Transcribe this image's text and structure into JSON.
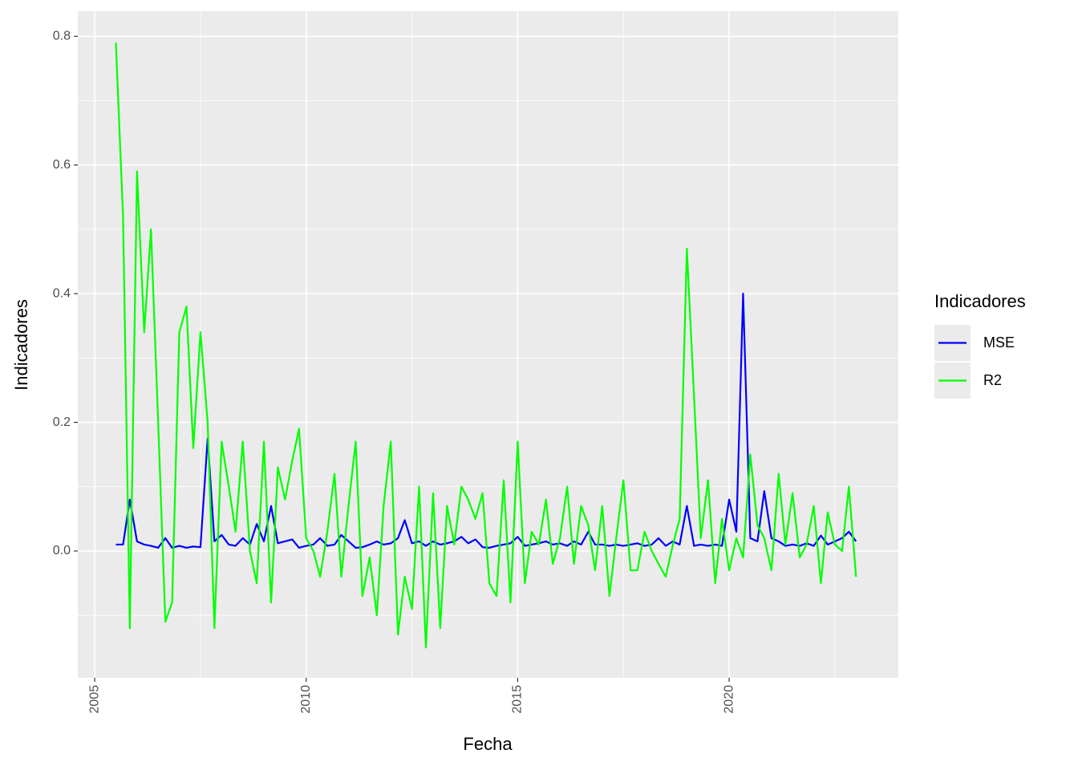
{
  "chart_data": {
    "type": "line",
    "x_label": "Fecha",
    "y_label": "Indicadores",
    "legend_title": "Indicadores",
    "legend_position": "right",
    "grid": true,
    "x": [
      2005.5,
      2005.67,
      2005.83,
      2006,
      2006.17,
      2006.33,
      2006.5,
      2006.67,
      2006.83,
      2007,
      2007.17,
      2007.33,
      2007.5,
      2007.67,
      2007.83,
      2008,
      2008.17,
      2008.33,
      2008.5,
      2008.67,
      2008.83,
      2009,
      2009.17,
      2009.33,
      2009.5,
      2009.67,
      2009.83,
      2010,
      2010.17,
      2010.33,
      2010.5,
      2010.67,
      2010.83,
      2011,
      2011.17,
      2011.33,
      2011.5,
      2011.67,
      2011.83,
      2012,
      2012.17,
      2012.33,
      2012.5,
      2012.67,
      2012.83,
      2013,
      2013.17,
      2013.33,
      2013.5,
      2013.67,
      2013.83,
      2014,
      2014.17,
      2014.33,
      2014.5,
      2014.67,
      2014.83,
      2015,
      2015.17,
      2015.33,
      2015.5,
      2015.67,
      2015.83,
      2016,
      2016.17,
      2016.33,
      2016.5,
      2016.67,
      2016.83,
      2017,
      2017.17,
      2017.33,
      2017.5,
      2017.67,
      2017.83,
      2018,
      2018.17,
      2018.33,
      2018.5,
      2018.67,
      2018.83,
      2019,
      2019.17,
      2019.33,
      2019.5,
      2019.67,
      2019.83,
      2020,
      2020.17,
      2020.33,
      2020.5,
      2020.67,
      2020.83,
      2021,
      2021.17,
      2021.33,
      2021.5,
      2021.67,
      2021.83,
      2022,
      2022.17,
      2022.33,
      2022.5,
      2022.67,
      2022.83,
      2023
    ],
    "series": [
      {
        "name": "MSE",
        "color": "#0000ff",
        "values": [
          0.01,
          0.01,
          0.08,
          0.015,
          0.01,
          0.008,
          0.005,
          0.02,
          0.005,
          0.008,
          0.005,
          0.007,
          0.006,
          0.175,
          0.015,
          0.025,
          0.01,
          0.008,
          0.02,
          0.01,
          0.042,
          0.015,
          0.07,
          0.012,
          0.015,
          0.018,
          0.005,
          0.008,
          0.01,
          0.02,
          0.008,
          0.01,
          0.025,
          0.015,
          0.005,
          0.006,
          0.01,
          0.015,
          0.01,
          0.012,
          0.02,
          0.048,
          0.012,
          0.015,
          0.008,
          0.015,
          0.01,
          0.012,
          0.015,
          0.022,
          0.012,
          0.018,
          0.006,
          0.005,
          0.008,
          0.01,
          0.012,
          0.022,
          0.008,
          0.01,
          0.012,
          0.015,
          0.01,
          0.012,
          0.008,
          0.015,
          0.01,
          0.03,
          0.01,
          0.01,
          0.008,
          0.01,
          0.008,
          0.01,
          0.012,
          0.008,
          0.01,
          0.02,
          0.008,
          0.015,
          0.01,
          0.07,
          0.008,
          0.01,
          0.008,
          0.01,
          0.008,
          0.08,
          0.03,
          0.4,
          0.02,
          0.015,
          0.093,
          0.02,
          0.015,
          0.008,
          0.01,
          0.008,
          0.012,
          0.008,
          0.024,
          0.01,
          0.015,
          0.02,
          0.03,
          0.015
        ]
      },
      {
        "name": "R2",
        "color": "#00ff00",
        "values": [
          0.79,
          0.52,
          -0.12,
          0.59,
          0.34,
          0.5,
          0.2,
          -0.11,
          -0.08,
          0.34,
          0.38,
          0.16,
          0.34,
          0.2,
          -0.12,
          0.17,
          0.1,
          0.03,
          0.17,
          0.0,
          -0.05,
          0.17,
          -0.08,
          0.13,
          0.08,
          0.14,
          0.19,
          0.02,
          0.0,
          -0.04,
          0.03,
          0.12,
          -0.04,
          0.07,
          0.17,
          -0.07,
          -0.01,
          -0.1,
          0.07,
          0.17,
          -0.13,
          -0.04,
          -0.09,
          0.1,
          -0.15,
          0.09,
          -0.12,
          0.07,
          0.01,
          0.1,
          0.08,
          0.05,
          0.09,
          -0.05,
          -0.07,
          0.11,
          -0.08,
          0.17,
          -0.05,
          0.03,
          0.01,
          0.08,
          -0.02,
          0.02,
          0.1,
          -0.02,
          0.07,
          0.04,
          -0.03,
          0.07,
          -0.07,
          0.02,
          0.11,
          -0.03,
          -0.03,
          0.03,
          0.0,
          -0.02,
          -0.04,
          0.01,
          0.05,
          0.47,
          0.24,
          0.02,
          0.11,
          -0.05,
          0.05,
          -0.03,
          0.02,
          -0.01,
          0.15,
          0.04,
          0.02,
          -0.03,
          0.12,
          0.01,
          0.09,
          -0.01,
          0.01,
          0.07,
          -0.05,
          0.06,
          0.01,
          0.0,
          0.1,
          -0.04
        ]
      }
    ],
    "xlim": [
      2004.6,
      2024.0
    ],
    "xticks": [
      2005,
      2010,
      2015,
      2020
    ],
    "ylim": [
      -0.197,
      0.839
    ],
    "yticks": [
      {
        "value": 0,
        "label": "0.0"
      },
      {
        "value": 0.2,
        "label": "0.2"
      },
      {
        "value": 0.4,
        "label": "0.4"
      },
      {
        "value": 0.6,
        "label": "0.6"
      },
      {
        "value": 0.8,
        "label": "0.8"
      }
    ]
  }
}
